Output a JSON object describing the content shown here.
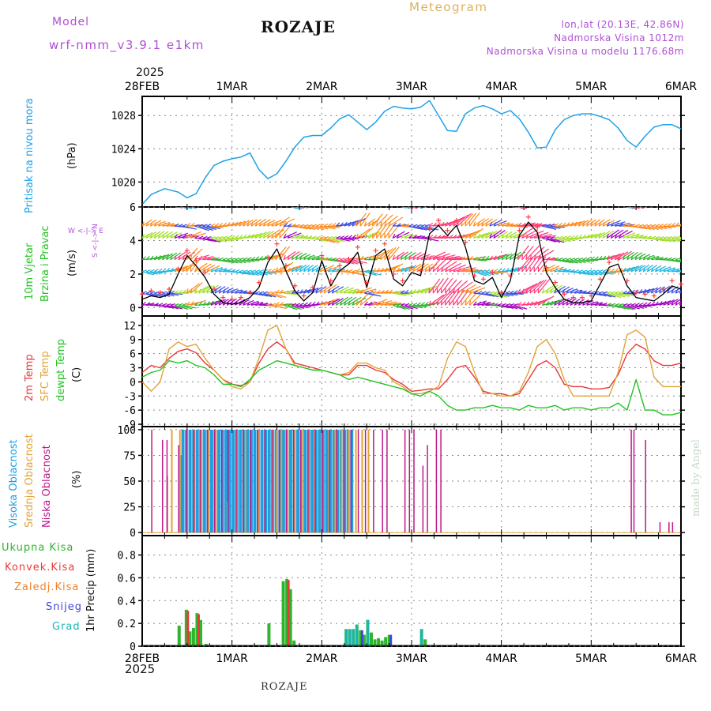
{
  "header": {
    "model_label": "Model",
    "model_name": "wrf-nmm_v3.9.1 e1km",
    "station": "ROZAJE",
    "meteogram": "Meteogram",
    "lonlat": "lon,lat (20.13E, 42.86N)",
    "elevation": "Nadmorska Visina 1012m",
    "model_elevation": "Nadmorska Visina u modelu 1176.68m",
    "year": "2025",
    "footer_station": "ROZAJE",
    "watermark": "made by Angel"
  },
  "colors": {
    "pressure": "#1da1e8",
    "temp2m": "#e8373a",
    "sfc": "#e0a33a",
    "dewpt": "#22c422",
    "wind_obs": "#ff3b3b",
    "precip_total": "#2db52d",
    "precip_conv": "#e83a3a",
    "precip_frozen": "#f07f2a",
    "snow": "#4444dd",
    "graupel": "#1ab5b5",
    "cloud_high": "#1ea0e0",
    "cloud_mid": "#e0a33a",
    "cloud_low": "#c0168a",
    "title_purple": "#b04fd6",
    "title_gold": "#e0b060"
  },
  "panel_labels": {
    "pressure": {
      "title": "Pritisak na nivou mora",
      "unit": "(hPa)"
    },
    "wind": {
      "title1": "10m Vjetar",
      "title2": "Brzina i Pravac",
      "unit": "(m/s)",
      "compass": "W <-|-> E",
      "compass_v": "S <-|-> N"
    },
    "temp": {
      "l1": "2m Temp",
      "l2": "SFC Temp",
      "l3": "dewpt Temp",
      "unit": "(C)"
    },
    "cloud": {
      "l1": "Visoka Oblacnost",
      "l2": "Srednja Oblacnost",
      "l3": "Niska Oblacnost",
      "unit": "(%)"
    },
    "precip": {
      "unit": "1hr Precip (mm)",
      "legend": [
        "Ukupna Kisa",
        "Konvek.Kisa",
        "Zaledj.Kisa",
        "Snijeg",
        "Grad"
      ]
    }
  },
  "chart_data": [
    {
      "type": "line",
      "title": "Pritisak na nivou mora",
      "ylabel": "(hPa)",
      "x_ticks": [
        "28FEB",
        "1MAR",
        "2MAR",
        "3MAR",
        "4MAR",
        "5MAR",
        "6MAR"
      ],
      "ylim": [
        1017,
        1030.3
      ],
      "y_ticks": [
        1020,
        1024,
        1028
      ],
      "series": [
        {
          "name": "Pritisak na nivou mora",
          "x_days": [
            0,
            0.1,
            0.25,
            0.4,
            0.5,
            0.6,
            0.7,
            0.8,
            0.9,
            1,
            1.1,
            1.2,
            1.3,
            1.4,
            1.5,
            1.6,
            1.7,
            1.8,
            1.9,
            2,
            2.1,
            2.2,
            2.3,
            2.4,
            2.5,
            2.6,
            2.7,
            2.8,
            2.9,
            3,
            3.1,
            3.2,
            3.3,
            3.4,
            3.5,
            3.6,
            3.7,
            3.8,
            3.9,
            4,
            4.1,
            4.2,
            4.3,
            4.4,
            4.5,
            4.6,
            4.7,
            4.8,
            4.9,
            5,
            5.1,
            5.2,
            5.3,
            5.4,
            5.5,
            5.6,
            5.7,
            5.8,
            5.9,
            6
          ],
          "values": [
            1017.3,
            1018.5,
            1019.2,
            1018.8,
            1018.1,
            1018.6,
            1020.5,
            1022,
            1022.5,
            1022.8,
            1023,
            1023.5,
            1021.5,
            1020.4,
            1021,
            1022.5,
            1024.2,
            1025.4,
            1025.6,
            1025.6,
            1026.5,
            1027.6,
            1028.1,
            1027.2,
            1026.3,
            1027.2,
            1028.5,
            1029.1,
            1028.9,
            1028.8,
            1029,
            1029.8,
            1028,
            1026.2,
            1026.1,
            1028.2,
            1028.9,
            1029.2,
            1028.8,
            1028.2,
            1028.6,
            1027.6,
            1026,
            1024.1,
            1024.2,
            1026.3,
            1027.5,
            1028,
            1028.2,
            1028.2,
            1027.9,
            1027.5,
            1026.5,
            1025,
            1024.2,
            1025.5,
            1026.6,
            1026.9,
            1026.9,
            1026.4
          ]
        }
      ]
    },
    {
      "type": "line",
      "title": "10m Vjetar Brzina i Pravac",
      "ylabel": "(m/s)",
      "x_ticks": [
        "28FEB",
        "1MAR",
        "2MAR",
        "3MAR",
        "4MAR",
        "5MAR",
        "6MAR"
      ],
      "ylim": [
        -0.5,
        6
      ],
      "y_ticks": [
        0,
        2,
        4,
        6
      ],
      "series": [
        {
          "name": "wind speed",
          "x_days": [
            0,
            0.1,
            0.2,
            0.3,
            0.4,
            0.5,
            0.6,
            0.7,
            0.8,
            0.9,
            1,
            1.1,
            1.2,
            1.3,
            1.4,
            1.5,
            1.6,
            1.7,
            1.8,
            1.9,
            2,
            2.1,
            2.2,
            2.3,
            2.4,
            2.5,
            2.6,
            2.7,
            2.8,
            2.9,
            3,
            3.1,
            3.2,
            3.3,
            3.4,
            3.5,
            3.6,
            3.7,
            3.8,
            3.9,
            4,
            4.1,
            4.2,
            4.3,
            4.4,
            4.5,
            4.6,
            4.7,
            4.8,
            4.9,
            5,
            5.1,
            5.2,
            5.3,
            5.4,
            5.5,
            5.6,
            5.7,
            5.8,
            5.9,
            6
          ],
          "values": [
            0.5,
            0.7,
            0.6,
            0.8,
            2,
            3.1,
            2.5,
            1.8,
            0.8,
            0.3,
            0.2,
            0.3,
            0.6,
            1.2,
            2.7,
            3.5,
            2.2,
            1,
            0.4,
            0.9,
            2.8,
            1.3,
            2.2,
            2.6,
            3.3,
            1.2,
            3.1,
            3.5,
            1.7,
            1.3,
            2.1,
            1.9,
            4.4,
            4.9,
            4.3,
            4.9,
            3.6,
            1.6,
            1.4,
            1.8,
            0.6,
            1.6,
            4.3,
            5.1,
            4.5,
            2.1,
            1.2,
            0.5,
            0.3,
            0.3,
            0.4,
            1.4,
            2.4,
            2.6,
            1.3,
            0.6,
            0.5,
            0.4,
            0.8,
            1.3,
            1.1
          ]
        }
      ]
    },
    {
      "type": "line",
      "title": "2m Temp / SFC Temp / dewpt Temp",
      "ylabel": "(C)",
      "x_ticks": [
        "28FEB",
        "1MAR",
        "2MAR",
        "3MAR",
        "4MAR",
        "5MAR",
        "6MAR"
      ],
      "ylim": [
        -9.5,
        14
      ],
      "y_ticks": [
        -9,
        -6,
        -3,
        0,
        3,
        6,
        9,
        12
      ],
      "x_days": [
        0,
        0.1,
        0.2,
        0.3,
        0.4,
        0.5,
        0.6,
        0.7,
        0.8,
        0.9,
        1,
        1.1,
        1.2,
        1.3,
        1.4,
        1.5,
        1.6,
        1.7,
        1.8,
        1.9,
        2,
        2.1,
        2.2,
        2.3,
        2.4,
        2.5,
        2.6,
        2.7,
        2.8,
        2.9,
        3,
        3.1,
        3.2,
        3.3,
        3.4,
        3.5,
        3.6,
        3.7,
        3.8,
        3.9,
        4,
        4.1,
        4.2,
        4.3,
        4.4,
        4.5,
        4.6,
        4.7,
        4.8,
        4.9,
        5,
        5.1,
        5.2,
        5.3,
        5.4,
        5.5,
        5.6,
        5.7,
        5.8,
        5.9,
        6
      ],
      "series": [
        {
          "name": "2m Temp",
          "values": [
            2,
            3.5,
            3,
            5,
            6.5,
            7,
            6.2,
            4,
            2.5,
            0.5,
            -0.5,
            -0.8,
            0,
            4,
            7,
            8.5,
            7,
            4,
            3.5,
            3,
            2.5,
            2,
            1.5,
            1.5,
            3.5,
            3.5,
            2.5,
            2,
            0.5,
            -0.5,
            -2,
            -1.8,
            -1.5,
            -1.5,
            0.5,
            3,
            3.5,
            1,
            -2,
            -2.5,
            -2.5,
            -3,
            -2.5,
            0.5,
            3.5,
            4.5,
            3,
            -0.5,
            -1,
            -1,
            -1.5,
            -1.5,
            -1.2,
            1.5,
            6,
            8,
            7,
            4.5,
            3.5,
            3.5,
            4
          ]
        },
        {
          "name": "SFC Temp",
          "values": [
            0,
            -2,
            0,
            7,
            8.5,
            7.5,
            8,
            5,
            2.5,
            0.5,
            -1,
            -1.5,
            0,
            5,
            11,
            12,
            7,
            3.5,
            3,
            2.5,
            2.5,
            2,
            1.5,
            2,
            4,
            4,
            3,
            2.5,
            0,
            -1,
            -2.5,
            -2.5,
            -2,
            -1,
            5,
            8.5,
            7.5,
            2,
            -2.5,
            -2.5,
            -3,
            -3,
            -2,
            2,
            7.5,
            9,
            6,
            0.5,
            -3,
            -3,
            -3,
            -3,
            -3,
            2,
            10,
            11,
            9.5,
            1,
            -1,
            -1,
            -1
          ]
        },
        {
          "name": "dewpt Temp",
          "values": [
            1,
            2,
            2.5,
            4.5,
            4,
            4.5,
            3.5,
            3,
            1.5,
            -0.5,
            -0.5,
            -1,
            0.5,
            2.5,
            3.5,
            4.5,
            4,
            3.5,
            3,
            2.5,
            2.5,
            2,
            1.5,
            0.5,
            1,
            0.5,
            0,
            -0.5,
            -1,
            -1.5,
            -2.5,
            -3,
            -2,
            -3,
            -5,
            -6,
            -6,
            -5.5,
            -5.5,
            -5,
            -5.5,
            -5.5,
            -6,
            -5,
            -5.5,
            -5.5,
            -5,
            -6,
            -5.5,
            -5.5,
            -6,
            -5.5,
            -5.5,
            -4.5,
            -6,
            0.5,
            -6,
            -6,
            -7,
            -7,
            -6.5
          ]
        }
      ]
    },
    {
      "type": "bar",
      "title": "Visoka / Srednja / Niska Oblacnost",
      "ylabel": "(%)",
      "x_ticks": [
        "28FEB",
        "1MAR",
        "2MAR",
        "3MAR",
        "4MAR",
        "5MAR",
        "6MAR"
      ],
      "ylim": [
        -3,
        103
      ],
      "y_ticks": [
        0,
        25,
        50,
        75,
        100
      ],
      "series": [
        {
          "name": "Visoka Oblacnost",
          "x_days": [
            0.45,
            0.48,
            0.52,
            0.56,
            0.6,
            0.64,
            0.68,
            0.72,
            0.76,
            0.8,
            0.84,
            0.88,
            0.92,
            0.96,
            1,
            1.04,
            1.08,
            1.12,
            1.16,
            1.2,
            1.24,
            1.28,
            1.32,
            1.36,
            1.4,
            1.44,
            1.48,
            1.52,
            1.56,
            1.6,
            1.64,
            1.68,
            1.72,
            1.76,
            1.8,
            1.84,
            1.88,
            1.92,
            1.96,
            2,
            2.04,
            2.08,
            2.12,
            2.16,
            2.2,
            2.24,
            2.28,
            2.32,
            2.36
          ],
          "values": [
            75,
            100,
            100,
            100,
            100,
            100,
            100,
            100,
            100,
            100,
            100,
            100,
            100,
            100,
            100,
            100,
            100,
            100,
            100,
            100,
            100,
            100,
            100,
            100,
            100,
            100,
            100,
            100,
            100,
            100,
            100,
            100,
            100,
            100,
            100,
            100,
            100,
            100,
            100,
            100,
            100,
            100,
            100,
            100,
            100,
            100,
            100,
            100,
            100
          ]
        },
        {
          "name": "Srednja Oblacnost",
          "x_days": [
            0.28,
            0.33,
            0.42,
            0.5,
            0.58,
            0.66,
            0.74,
            0.82,
            0.95,
            1.05,
            1.15,
            1.3,
            1.45,
            1.5,
            1.55,
            1.62,
            1.7,
            1.78,
            1.85,
            1.92,
            2,
            2.08,
            2.15,
            2.22,
            2.3,
            2.38,
            2.45,
            2.52
          ],
          "values": [
            55,
            100,
            100,
            100,
            100,
            100,
            100,
            100,
            30,
            100,
            100,
            100,
            100,
            100,
            100,
            100,
            100,
            100,
            100,
            100,
            100,
            100,
            100,
            100,
            100,
            100,
            100,
            100
          ]
        },
        {
          "name": "Niska Oblacnost",
          "x_days": [
            0.08,
            0.2,
            0.25,
            0.38,
            0.47,
            0.55,
            0.62,
            0.7,
            0.78,
            0.86,
            0.93,
            1.02,
            1.1,
            1.18,
            1.26,
            1.34,
            1.42,
            1.5,
            1.58,
            1.66,
            1.74,
            1.82,
            1.9,
            1.98,
            2.06,
            2.14,
            2.22,
            2.3,
            2.38,
            2.46,
            2.55,
            2.65,
            2.7,
            2.9,
            2.95,
            3,
            3.1,
            3.15,
            3.25,
            3.3,
            5.42,
            5.45,
            5.58,
            5.74,
            5.84,
            5.88
          ],
          "values": [
            100,
            90,
            90,
            85,
            100,
            100,
            100,
            100,
            100,
            100,
            100,
            100,
            100,
            100,
            100,
            100,
            100,
            100,
            100,
            100,
            100,
            100,
            100,
            100,
            100,
            100,
            100,
            100,
            100,
            100,
            100,
            100,
            100,
            100,
            100,
            100,
            65,
            85,
            100,
            100,
            100,
            100,
            90,
            10,
            10,
            10
          ]
        }
      ]
    },
    {
      "type": "bar",
      "title": "1hr Precip",
      "ylabel": "1hr Precip (mm)",
      "x_ticks": [
        "28FEB",
        "1MAR",
        "2MAR",
        "3MAR",
        "4MAR",
        "5MAR",
        "6MAR"
      ],
      "ylim": [
        0,
        0.97
      ],
      "y_ticks": [
        0,
        0.2,
        0.4,
        0.6,
        0.8
      ],
      "series": [
        {
          "name": "Ukupna Kisa",
          "x_days": [
            0.42,
            0.5,
            0.54,
            0.58,
            0.62,
            0.66,
            0.72,
            1.42,
            1.58,
            1.62,
            1.66,
            1.7,
            2.28,
            2.32,
            2.36,
            2.4,
            2.44,
            2.48,
            2.52,
            2.56,
            2.6,
            2.64,
            2.68,
            2.72,
            2.76,
            3.12,
            3.16
          ],
          "values": [
            0.18,
            0.32,
            0.13,
            0.16,
            0.29,
            0.23,
            0.02,
            0.2,
            0.57,
            0.59,
            0.5,
            0.05,
            0.15,
            0.15,
            0.15,
            0.19,
            0.14,
            0.1,
            0.23,
            0.12,
            0.06,
            0.07,
            0.05,
            0.08,
            0.1,
            0.15,
            0.06
          ]
        },
        {
          "name": "Konvek.Kisa",
          "x_days": [
            0.5,
            0.62,
            1.62
          ],
          "values": [
            0.31,
            0.28,
            0.58
          ]
        },
        {
          "name": "Zaledj.Kisa",
          "x_days": [],
          "values": []
        },
        {
          "name": "Snijeg",
          "x_days": [
            2.44,
            2.76
          ],
          "values": [
            0.14,
            0.1
          ]
        },
        {
          "name": "Grad",
          "x_days": [
            2.28,
            2.32,
            2.36,
            2.4,
            2.52,
            3.12
          ],
          "values": [
            0.15,
            0.15,
            0.15,
            0.19,
            0.23,
            0.15
          ]
        }
      ]
    }
  ]
}
